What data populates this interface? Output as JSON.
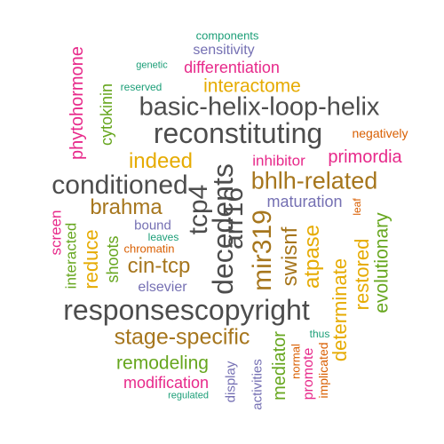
{
  "palette": {
    "dark_gray": "#4d4d4d",
    "teal": "#1b9e77",
    "orange": "#d95f02",
    "purple": "#7570b3",
    "magenta": "#e7298a",
    "green": "#66a61e",
    "gold": "#e6ab02",
    "brown": "#a6761d"
  },
  "words": [
    {
      "text": "components",
      "color": "#1b9e77"
    },
    {
      "text": "sensitivity",
      "color": "#7570b3"
    },
    {
      "text": "genetic",
      "color": "#1b9e77"
    },
    {
      "text": "differentiation",
      "color": "#e7298a"
    },
    {
      "text": "reserved",
      "color": "#1b9e77"
    },
    {
      "text": "interactome",
      "color": "#e6ab02"
    },
    {
      "text": "basic-helix-loop-helix",
      "color": "#4d4d4d"
    },
    {
      "text": "reconstituting",
      "color": "#4d4d4d"
    },
    {
      "text": "negatively",
      "color": "#d95f02"
    },
    {
      "text": "indeed",
      "color": "#e6ab02"
    },
    {
      "text": "inhibitor",
      "color": "#e7298a"
    },
    {
      "text": "primordia",
      "color": "#e7298a"
    },
    {
      "text": "conditioned",
      "color": "#4d4d4d"
    },
    {
      "text": "bhlh-related",
      "color": "#a6761d"
    },
    {
      "text": "brahma",
      "color": "#a6761d"
    },
    {
      "text": "maturation",
      "color": "#7570b3"
    },
    {
      "text": "bound",
      "color": "#7570b3"
    },
    {
      "text": "leaves",
      "color": "#1b9e77"
    },
    {
      "text": "chromatin",
      "color": "#d95f02"
    },
    {
      "text": "cin-tcp",
      "color": "#a6761d"
    },
    {
      "text": "elsevier",
      "color": "#7570b3"
    },
    {
      "text": "responsescopyright",
      "color": "#4d4d4d"
    },
    {
      "text": "stage-specific",
      "color": "#a6761d"
    },
    {
      "text": "thus",
      "color": "#1b9e77"
    },
    {
      "text": "remodeling",
      "color": "#66a61e"
    },
    {
      "text": "modification",
      "color": "#e7298a"
    },
    {
      "text": "regulated",
      "color": "#1b9e77"
    },
    {
      "text": "phytohormone",
      "color": "#e7298a"
    },
    {
      "text": "cytokinin",
      "color": "#66a61e"
    },
    {
      "text": "screen",
      "color": "#e7298a"
    },
    {
      "text": "interacted",
      "color": "#66a61e"
    },
    {
      "text": "reduce",
      "color": "#e6ab02"
    },
    {
      "text": "shoots",
      "color": "#66a61e"
    },
    {
      "text": "tcp4",
      "color": "#4d4d4d"
    },
    {
      "text": "decedents",
      "color": "#4d4d4d"
    },
    {
      "text": "arr16",
      "color": "#4d4d4d"
    },
    {
      "text": "mir319",
      "color": "#a6761d"
    },
    {
      "text": "swisnf",
      "color": "#a6761d"
    },
    {
      "text": "atpase",
      "color": "#e6ab02"
    },
    {
      "text": "leaf",
      "color": "#d95f02"
    },
    {
      "text": "evolutionary",
      "color": "#66a61e"
    },
    {
      "text": "restored",
      "color": "#e6ab02"
    },
    {
      "text": "determinate",
      "color": "#e6ab02"
    },
    {
      "text": "mediator",
      "color": "#66a61e"
    },
    {
      "text": "normal",
      "color": "#d95f02"
    },
    {
      "text": "promote",
      "color": "#e7298a"
    },
    {
      "text": "implicated",
      "color": "#d95f02"
    },
    {
      "text": "display",
      "color": "#7570b3"
    },
    {
      "text": "activities",
      "color": "#7570b3"
    }
  ]
}
